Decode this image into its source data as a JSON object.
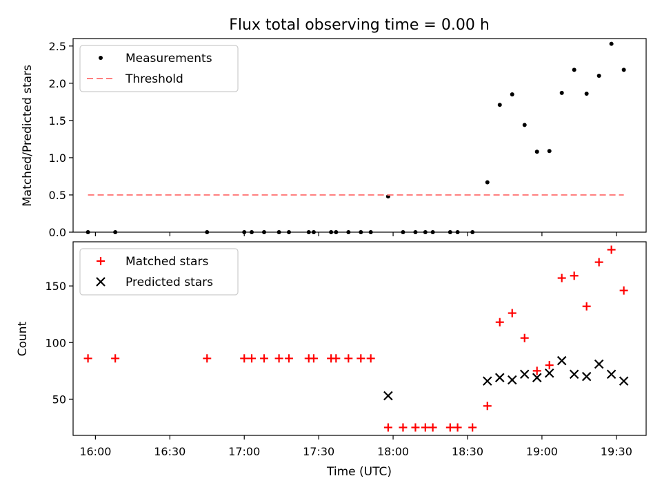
{
  "figure": {
    "title": "Flux total observing time = 0.00 h"
  },
  "chart_data": [
    {
      "type": "scatter",
      "panel": "top",
      "ylabel": "Matched/Predicted stars",
      "xlabel": "",
      "xlim": [
        "15:51",
        "19:42"
      ],
      "ylim": [
        0,
        2.6
      ],
      "yticks": [
        "0.0",
        "0.5",
        "1.0",
        "1.5",
        "2.0",
        "2.5"
      ],
      "legend": {
        "placement": "top-left"
      },
      "series": [
        {
          "name": "Measurements",
          "marker": "dot",
          "color": "#000000",
          "x": [
            "15:57",
            "16:08",
            "16:45",
            "17:00",
            "17:03",
            "17:08",
            "17:14",
            "17:18",
            "17:26",
            "17:28",
            "17:35",
            "17:37",
            "17:42",
            "17:47",
            "17:51",
            "17:58",
            "18:04",
            "18:09",
            "18:13",
            "18:16",
            "18:23",
            "18:26",
            "18:32",
            "18:38",
            "18:43",
            "18:48",
            "18:53",
            "18:58",
            "19:03",
            "19:08",
            "19:13",
            "19:18",
            "19:23",
            "19:28",
            "19:33"
          ],
          "y": [
            0,
            0,
            0,
            0,
            0,
            0,
            0,
            0,
            0,
            0,
            0,
            0,
            0,
            0,
            0,
            0.48,
            0,
            0,
            0,
            0,
            0,
            0,
            0,
            0.67,
            1.71,
            1.85,
            1.44,
            1.08,
            1.09,
            1.87,
            2.18,
            1.86,
            2.1,
            2.53,
            2.18
          ]
        },
        {
          "name": "Threshold",
          "line": "dashed",
          "color": "#ff7f7f",
          "x": [
            "15:57",
            "19:33"
          ],
          "y": [
            0.5,
            0.5
          ]
        }
      ]
    },
    {
      "type": "scatter",
      "panel": "bottom",
      "ylabel": "Count",
      "xlabel": "Time (UTC)",
      "xlim": [
        "15:51",
        "19:42"
      ],
      "ylim": [
        18,
        189
      ],
      "yticks": [
        "50",
        "100",
        "150"
      ],
      "xticks": [
        "16:00",
        "16:30",
        "17:00",
        "17:30",
        "18:00",
        "18:30",
        "19:00",
        "19:30"
      ],
      "legend": {
        "placement": "top-left"
      },
      "series": [
        {
          "name": "Matched stars",
          "marker": "plus",
          "color": "#ff0000",
          "x": [
            "15:57",
            "16:08",
            "16:45",
            "17:00",
            "17:03",
            "17:08",
            "17:14",
            "17:18",
            "17:26",
            "17:28",
            "17:35",
            "17:37",
            "17:42",
            "17:47",
            "17:51",
            "17:58",
            "18:04",
            "18:09",
            "18:13",
            "18:16",
            "18:23",
            "18:26",
            "18:32",
            "18:38",
            "18:43",
            "18:48",
            "18:53",
            "18:58",
            "19:03",
            "19:08",
            "19:13",
            "19:18",
            "19:23",
            "19:28",
            "19:33"
          ],
          "y": [
            86,
            86,
            86,
            86,
            86,
            86,
            86,
            86,
            86,
            86,
            86,
            86,
            86,
            86,
            86,
            25,
            25,
            25,
            25,
            25,
            25,
            25,
            25,
            44,
            118,
            126,
            104,
            75,
            80,
            157,
            159,
            132,
            171,
            182,
            146
          ]
        },
        {
          "name": "Predicted stars",
          "marker": "x",
          "color": "#000000",
          "x": [
            "17:58",
            "18:38",
            "18:43",
            "18:48",
            "18:53",
            "18:58",
            "19:03",
            "19:08",
            "19:13",
            "19:18",
            "19:23",
            "19:28",
            "19:33"
          ],
          "y": [
            53,
            66,
            69,
            67,
            72,
            69,
            73,
            84,
            72,
            70,
            81,
            72,
            66
          ]
        }
      ]
    }
  ]
}
